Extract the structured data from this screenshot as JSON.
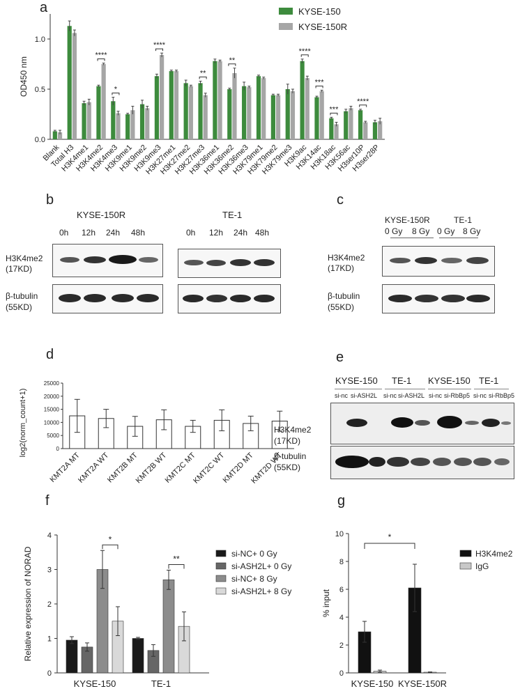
{
  "panel_labels": {
    "a": "a",
    "b": "b",
    "c": "c",
    "d": "d",
    "e": "e",
    "f": "f",
    "g": "g"
  },
  "colors": {
    "kyse150": "#3d8b3d",
    "kyse150r": "#a6a6a6"
  },
  "panel_b": {
    "left_title": "KYSE-150R",
    "right_title": "TE-1",
    "times_left": [
      "0h",
      "12h",
      "24h",
      "48h"
    ],
    "times_right": [
      "0h",
      "12h",
      "24h",
      "48h"
    ],
    "row1": "H3K4me2",
    "row1_kd": "(17KD)",
    "row2": "β-tubulin",
    "row2_kd": "(55KD)"
  },
  "panel_c": {
    "groups": [
      "KYSE-150R",
      "TE-1"
    ],
    "doses": [
      "0 Gy",
      "8 Gy",
      "0 Gy",
      "8 Gy"
    ],
    "row1": "H3K4me2",
    "row1_kd": "(17KD)",
    "row2": "β-tubulin",
    "row2_kd": "(55KD)"
  },
  "panel_e": {
    "groups": [
      "KYSE-150",
      "TE-1",
      "KYSE-150",
      "TE-1"
    ],
    "lanes": [
      "si-nc",
      "si-ASH2L",
      "si-nc",
      "si-ASH2L",
      "si-nc",
      "si-RbBp5",
      "si-nc",
      "si-RbBp5"
    ],
    "row1": "H3K4me2",
    "row1_kd": "(17KD)",
    "row2": "β-tubulin",
    "row2_kd": "(55KD)"
  },
  "chart_data": [
    {
      "panel": "a",
      "type": "bar",
      "ylabel": "OD450 nm",
      "ylim": [
        0,
        1.25
      ],
      "yticks": [
        "0.0",
        "0.5",
        "1.0"
      ],
      "categories": [
        "Blank",
        "Total H3",
        "H3K4me1",
        "H3K4me2",
        "H3K4me3",
        "H3K9me1",
        "H3K9me2",
        "H3K9me3",
        "H3K27me1",
        "H3K27me2",
        "H3K27me3",
        "H3K36me1",
        "H3K36me2",
        "H3K36me3",
        "H3K79me1",
        "H3K79me2",
        "H3K79me3",
        "H3K9ac",
        "H3K14ac",
        "H3K18ac",
        "H3K56ac",
        "H3ser10P",
        "H3ser28P"
      ],
      "series": [
        {
          "name": "KYSE-150",
          "values": [
            0.08,
            1.13,
            0.36,
            0.53,
            0.38,
            0.25,
            0.35,
            0.63,
            0.68,
            0.56,
            0.56,
            0.78,
            0.5,
            0.53,
            0.63,
            0.44,
            0.5,
            0.78,
            0.42,
            0.21,
            0.28,
            0.29,
            0.17
          ],
          "errors": [
            0.01,
            0.05,
            0.02,
            0.01,
            0.04,
            0.01,
            0.04,
            0.02,
            0.01,
            0.03,
            0.02,
            0.02,
            0.01,
            0.04,
            0.01,
            0.01,
            0.05,
            0.02,
            0.01,
            0.01,
            0.02,
            0.01,
            0.02
          ]
        },
        {
          "name": "KYSE-150R",
          "values": [
            0.07,
            1.06,
            0.37,
            0.75,
            0.26,
            0.29,
            0.31,
            0.84,
            0.68,
            0.53,
            0.44,
            0.78,
            0.66,
            0.52,
            0.61,
            0.44,
            0.48,
            0.61,
            0.48,
            0.15,
            0.31,
            0.17,
            0.18
          ],
          "errors": [
            0.02,
            0.03,
            0.03,
            0.01,
            0.02,
            0.04,
            0.02,
            0.02,
            0.01,
            0.01,
            0.02,
            0.01,
            0.05,
            0.01,
            0.01,
            0.01,
            0.02,
            0.02,
            0.01,
            0.02,
            0.02,
            0.01,
            0.03
          ]
        }
      ],
      "significance": [
        {
          "category": "H3K4me2",
          "label": "****"
        },
        {
          "category": "H3K4me3",
          "label": "*"
        },
        {
          "category": "H3K9me3",
          "label": "****"
        },
        {
          "category": "H3K27me3",
          "label": "**"
        },
        {
          "category": "H3K36me2",
          "label": "**"
        },
        {
          "category": "H3K9ac",
          "label": "****"
        },
        {
          "category": "H3K14ac",
          "label": "***"
        },
        {
          "category": "H3K18ac",
          "label": "***"
        },
        {
          "category": "H3ser10P",
          "label": "****"
        }
      ],
      "legend": "top-right"
    },
    {
      "panel": "d",
      "type": "bar",
      "ylabel": "log2(norm_count+1)",
      "ylim": [
        0,
        25000
      ],
      "yticks": [
        "0",
        "5000",
        "10000",
        "15000",
        "20000",
        "25000"
      ],
      "categories": [
        "KMT2A MT",
        "KMT2A WT",
        "KMT2B MT",
        "KMT2B WT",
        "KMT2C MT",
        "KMT2C WT",
        "KMT2D MT",
        "KMT2D WT"
      ],
      "values": [
        12500,
        11500,
        8500,
        11000,
        8500,
        10800,
        9600,
        10500
      ],
      "errors": [
        6300,
        3500,
        3800,
        3800,
        2300,
        4000,
        2800,
        3800
      ]
    },
    {
      "panel": "f",
      "type": "bar",
      "ylabel": "Relative expression of NORAD",
      "ylim": [
        0,
        4
      ],
      "yticks": [
        "0",
        "1",
        "2",
        "3",
        "4"
      ],
      "categories": [
        "KYSE-150",
        "TE-1"
      ],
      "series": [
        {
          "name": "si-NC+ 0 Gy",
          "values": [
            0.95,
            1.0
          ],
          "errors": [
            0.1,
            0.03
          ],
          "color": "#1a1a1a"
        },
        {
          "name": "si-ASH2L+ 0 Gy",
          "values": [
            0.75,
            0.65
          ],
          "errors": [
            0.12,
            0.17
          ],
          "color": "#666666"
        },
        {
          "name": "si-NC+ 8 Gy",
          "values": [
            3.0,
            2.7
          ],
          "errors": [
            0.55,
            0.28
          ],
          "color": "#8c8c8c"
        },
        {
          "name": "si-ASH2L+ 8 Gy",
          "values": [
            1.5,
            1.35
          ],
          "errors": [
            0.42,
            0.42
          ],
          "color": "#d9d9d9"
        }
      ],
      "significance": [
        {
          "category": "KYSE-150",
          "label": "*"
        },
        {
          "category": "TE-1",
          "label": "**"
        }
      ],
      "legend": "right"
    },
    {
      "panel": "g",
      "type": "bar",
      "ylabel": "% input",
      "ylim": [
        0,
        10
      ],
      "yticks": [
        "0",
        "2",
        "4",
        "6",
        "8",
        "10"
      ],
      "categories": [
        "KYSE-150",
        "KYSE-150R"
      ],
      "series": [
        {
          "name": "H3K4me2",
          "values": [
            2.95,
            6.1
          ],
          "errors": [
            0.75,
            1.7
          ],
          "color": "#111111"
        },
        {
          "name": "IgG",
          "values": [
            0.12,
            0.05
          ],
          "errors": [
            0.08,
            0.02
          ],
          "color": "#c8c8c8"
        }
      ],
      "significance": [
        {
          "label": "*"
        }
      ],
      "legend": "right"
    }
  ]
}
